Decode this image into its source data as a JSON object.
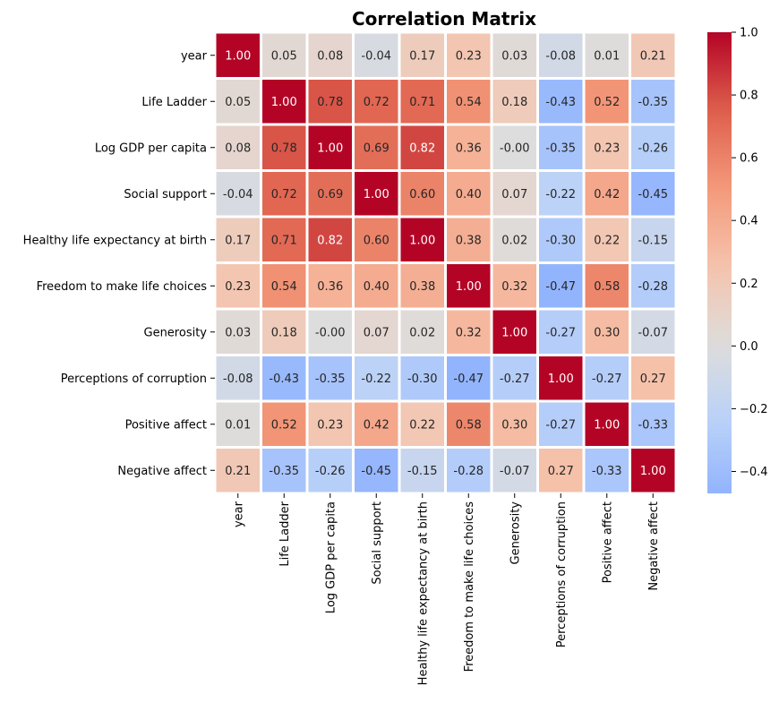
{
  "chart_data": {
    "type": "heatmap",
    "title": "Correlation Matrix",
    "xlabel": "",
    "ylabel": "",
    "labels": [
      "year",
      "Life Ladder",
      "Log GDP per capita",
      "Social support",
      "Healthy life expectancy at birth",
      "Freedom to make life choices",
      "Generosity",
      "Perceptions of corruption",
      "Positive affect",
      "Negative affect"
    ],
    "values": [
      [
        1.0,
        0.05,
        0.08,
        -0.04,
        0.17,
        0.23,
        0.03,
        -0.08,
        0.01,
        0.21
      ],
      [
        0.05,
        1.0,
        0.78,
        0.72,
        0.71,
        0.54,
        0.18,
        -0.43,
        0.52,
        -0.35
      ],
      [
        0.08,
        0.78,
        1.0,
        0.69,
        0.82,
        0.36,
        -0.0,
        -0.35,
        0.23,
        -0.26
      ],
      [
        -0.04,
        0.72,
        0.69,
        1.0,
        0.6,
        0.4,
        0.07,
        -0.22,
        0.42,
        -0.45
      ],
      [
        0.17,
        0.71,
        0.82,
        0.6,
        1.0,
        0.38,
        0.02,
        -0.3,
        0.22,
        -0.15
      ],
      [
        0.23,
        0.54,
        0.36,
        0.4,
        0.38,
        1.0,
        0.32,
        -0.47,
        0.58,
        -0.28
      ],
      [
        0.03,
        0.18,
        -0.0,
        0.07,
        0.02,
        0.32,
        1.0,
        -0.27,
        0.3,
        -0.07
      ],
      [
        -0.08,
        -0.43,
        -0.35,
        -0.22,
        -0.3,
        -0.47,
        -0.27,
        1.0,
        -0.27,
        0.27
      ],
      [
        0.01,
        0.52,
        0.23,
        0.42,
        0.22,
        0.58,
        0.3,
        -0.27,
        1.0,
        -0.33
      ],
      [
        0.21,
        -0.35,
        -0.26,
        -0.45,
        -0.15,
        -0.28,
        -0.07,
        0.27,
        -0.33,
        1.0
      ]
    ],
    "value_format": "2 decimals",
    "colormap": "coolwarm",
    "center": 0,
    "vmin": -0.47,
    "vmax": 1.0,
    "colorbar_ticks": [
      1.0,
      0.8,
      0.6,
      0.4,
      0.2,
      0.0,
      -0.2,
      -0.4
    ],
    "colorbar_tick_labels": [
      "1.0",
      "0.8",
      "0.6",
      "0.4",
      "0.2",
      "0.0",
      "−0.2",
      "−0.4"
    ],
    "grid": false,
    "cell_border_color": "#ffffff",
    "legend": "colorbar right"
  }
}
